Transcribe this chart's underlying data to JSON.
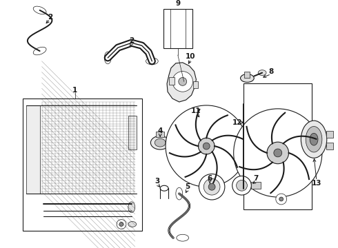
{
  "background_color": "#ffffff",
  "line_color": "#1a1a1a",
  "fig_width": 4.9,
  "fig_height": 3.6,
  "dpi": 100,
  "label_fs": 7.5,
  "lw_main": 0.8,
  "lw_thin": 0.5,
  "lw_thick": 1.4
}
